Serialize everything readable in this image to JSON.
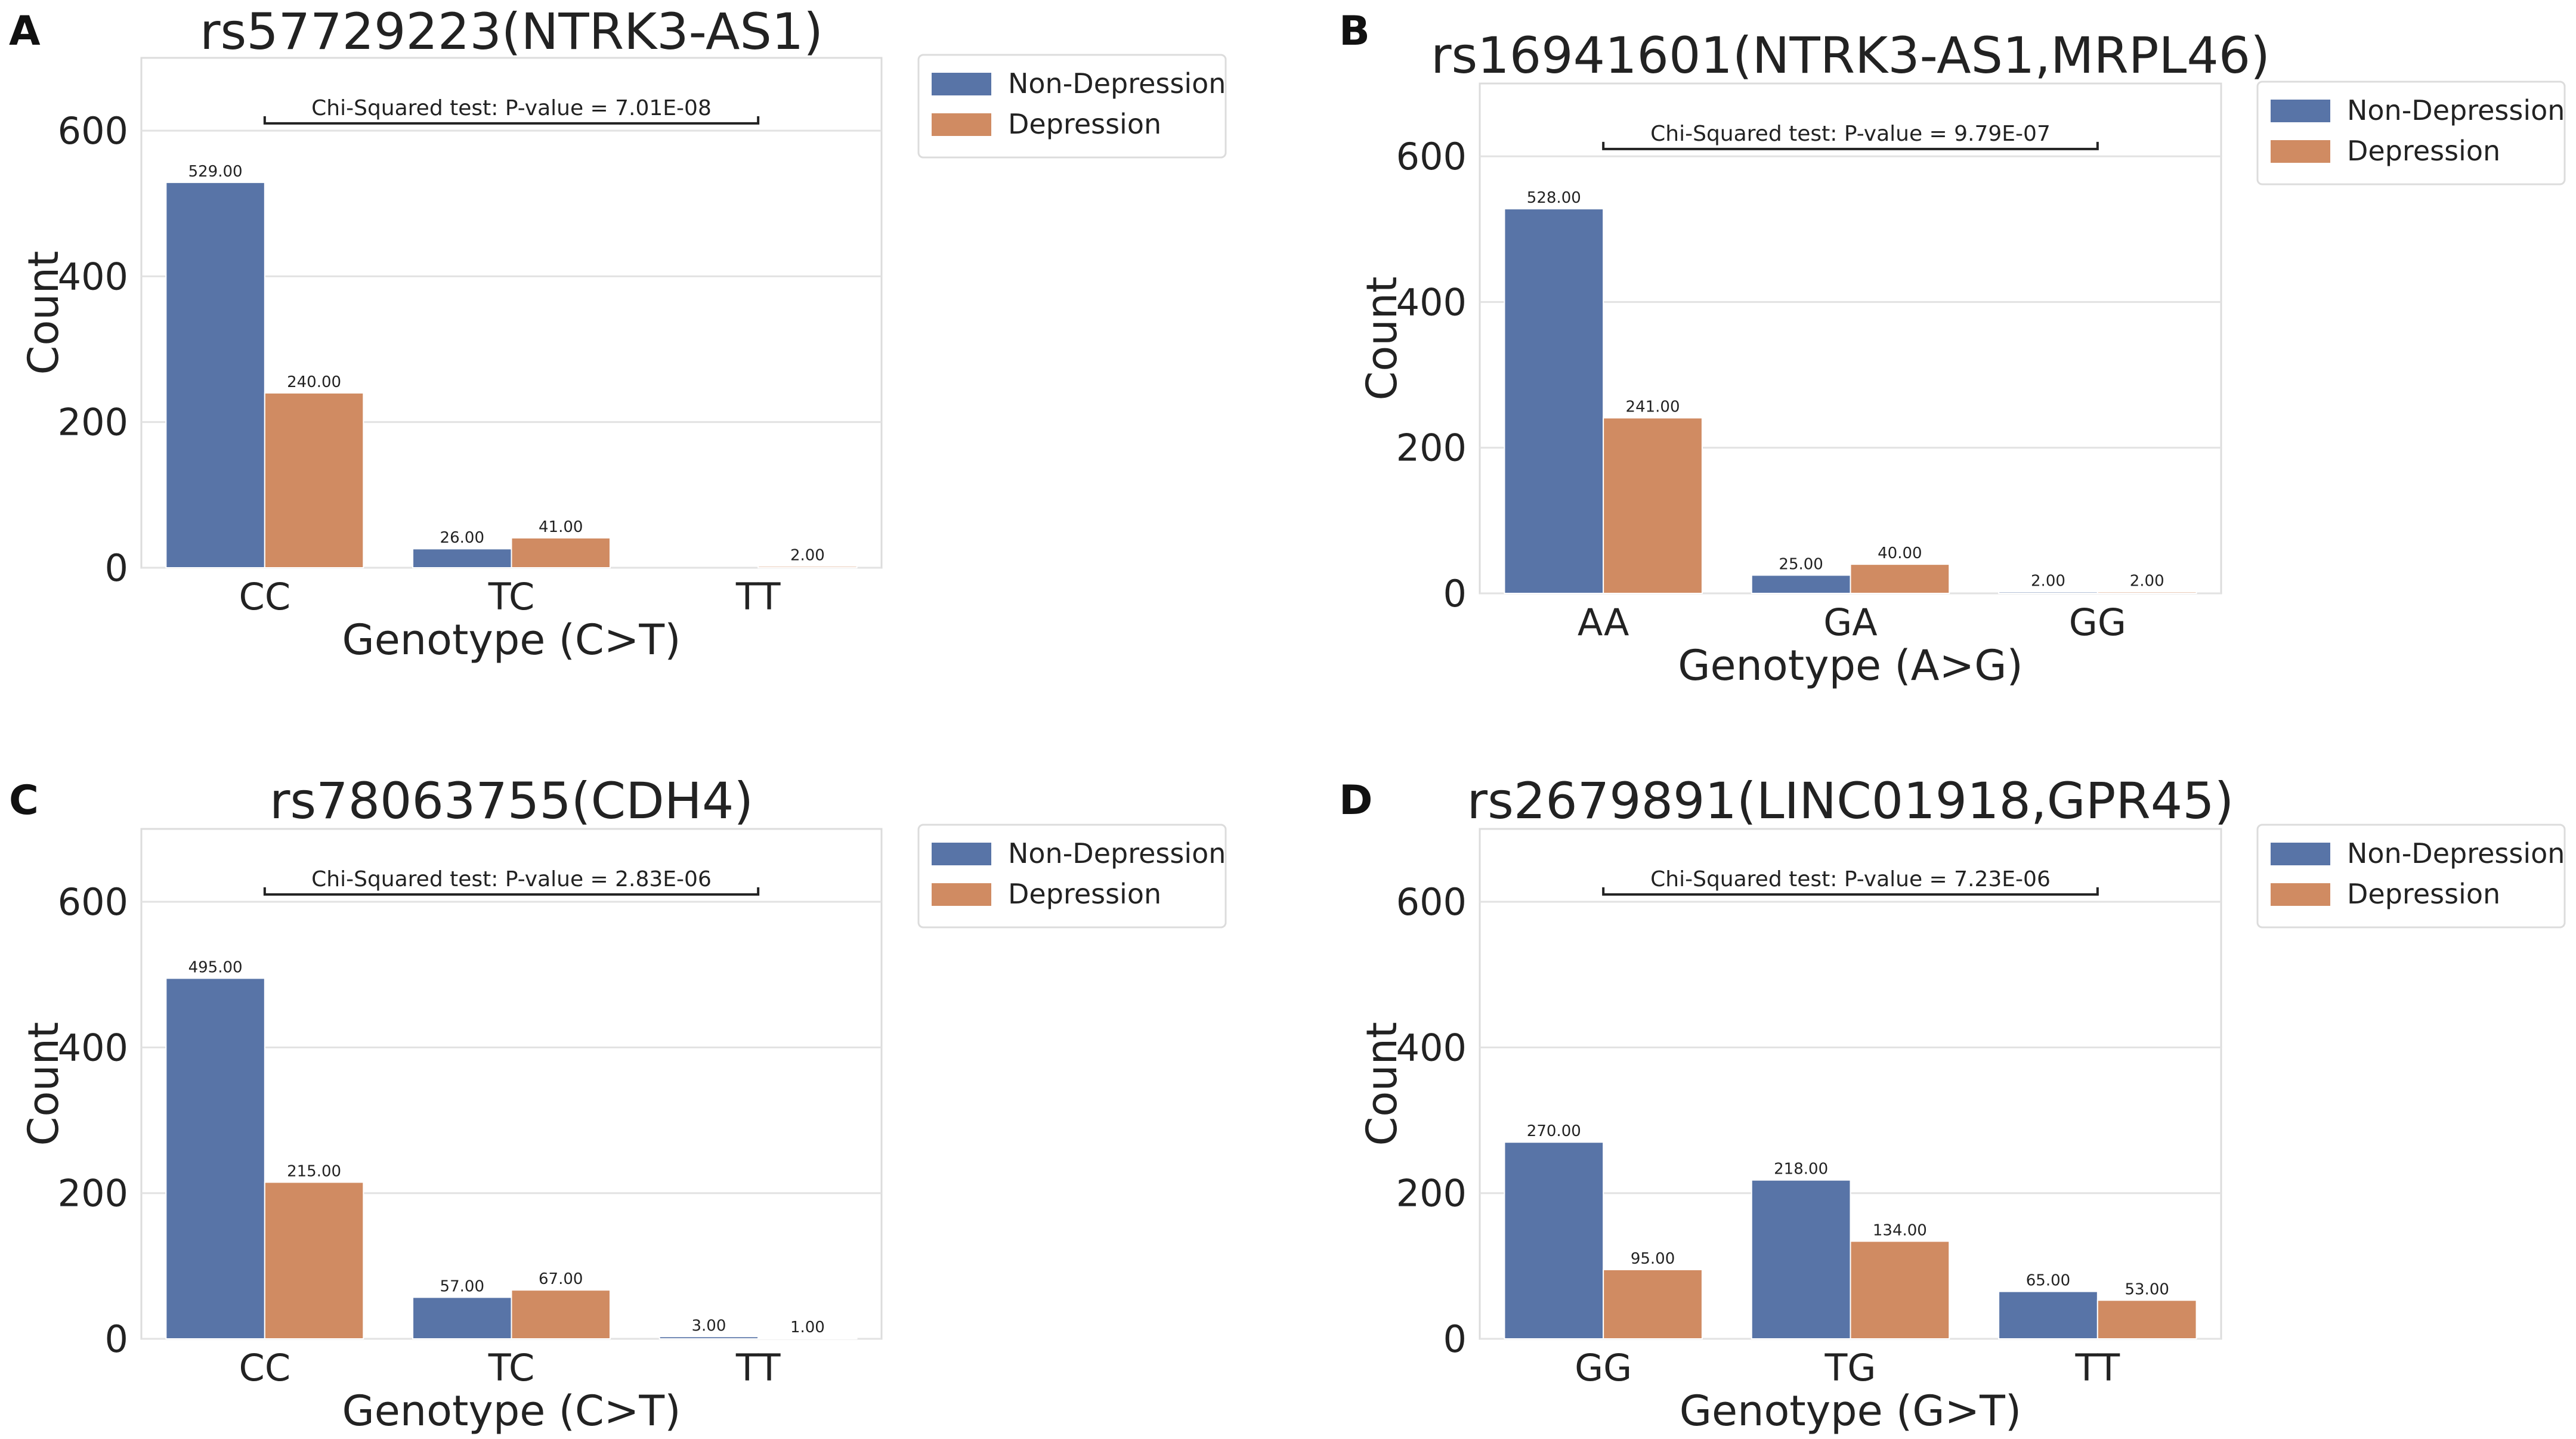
{
  "figure": {
    "legend_series": [
      "Non-Depression",
      "Depression"
    ],
    "colors": {
      "Non-Depression": "#5874a7",
      "Depression": "#d08b62"
    }
  },
  "chart_data": [
    {
      "panel": "A",
      "type": "bar",
      "title": "rs57729223(NTRK3-AS1)",
      "xlabel": "Genotype (C>T)",
      "ylabel": "Count",
      "ylim": [
        0,
        700
      ],
      "yticks": [
        0,
        200,
        400,
        600
      ],
      "categories": [
        "CC",
        "TC",
        "TT"
      ],
      "series": [
        {
          "name": "Non-Depression",
          "values": [
            529,
            26,
            null
          ],
          "labels": [
            "529.00",
            "26.00",
            ""
          ]
        },
        {
          "name": "Depression",
          "values": [
            240,
            41,
            2
          ],
          "labels": [
            "240.00",
            "41.00",
            "2.00"
          ]
        }
      ],
      "annotation": {
        "text": "Chi-Squared test: P-value = 7.01E-08",
        "y": 610
      },
      "legend": "top-right outside"
    },
    {
      "panel": "B",
      "type": "bar",
      "title": "rs16941601(NTRK3-AS1,MRPL46)",
      "xlabel": "Genotype (A>G)",
      "ylabel": "Count",
      "ylim": [
        0,
        700
      ],
      "yticks": [
        0,
        200,
        400,
        600
      ],
      "categories": [
        "AA",
        "GA",
        "GG"
      ],
      "series": [
        {
          "name": "Non-Depression",
          "values": [
            528,
            25,
            2
          ],
          "labels": [
            "528.00",
            "25.00",
            "2.00"
          ]
        },
        {
          "name": "Depression",
          "values": [
            241,
            40,
            2
          ],
          "labels": [
            "241.00",
            "40.00",
            "2.00"
          ]
        }
      ],
      "annotation": {
        "text": "Chi-Squared test: P-value = 9.79E-07",
        "y": 610
      },
      "legend": "top-right outside"
    },
    {
      "panel": "C",
      "type": "bar",
      "title": "rs78063755(CDH4)",
      "xlabel": "Genotype (C>T)",
      "ylabel": "Count",
      "ylim": [
        0,
        700
      ],
      "yticks": [
        0,
        200,
        400,
        600
      ],
      "categories": [
        "CC",
        "TC",
        "TT"
      ],
      "series": [
        {
          "name": "Non-Depression",
          "values": [
            495,
            57,
            3
          ],
          "labels": [
            "495.00",
            "57.00",
            "3.00"
          ]
        },
        {
          "name": "Depression",
          "values": [
            215,
            67,
            1
          ],
          "labels": [
            "215.00",
            "67.00",
            "1.00"
          ]
        }
      ],
      "annotation": {
        "text": "Chi-Squared test: P-value = 2.83E-06",
        "y": 610
      },
      "legend": "top-right outside"
    },
    {
      "panel": "D",
      "type": "bar",
      "title": "rs2679891(LINC01918,GPR45)",
      "xlabel": "Genotype (G>T)",
      "ylabel": "Count",
      "ylim": [
        0,
        700
      ],
      "yticks": [
        0,
        200,
        400,
        600
      ],
      "categories": [
        "GG",
        "TG",
        "TT"
      ],
      "series": [
        {
          "name": "Non-Depression",
          "values": [
            270,
            218,
            65
          ],
          "labels": [
            "270.00",
            "218.00",
            "65.00"
          ]
        },
        {
          "name": "Depression",
          "values": [
            95,
            134,
            53
          ],
          "labels": [
            "95.00",
            "134.00",
            "53.00"
          ]
        }
      ],
      "annotation": {
        "text": "Chi-Squared test: P-value = 7.23E-06",
        "y": 610
      },
      "legend": "top-right outside"
    }
  ]
}
